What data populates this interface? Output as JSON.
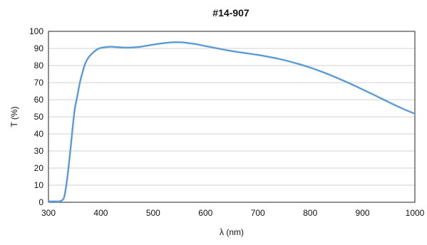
{
  "chart_data": {
    "type": "line",
    "title": "#14-907",
    "xlabel": "λ (nm)",
    "ylabel": "T (%)",
    "xlim": [
      300,
      1000
    ],
    "ylim": [
      0,
      100
    ],
    "xticks": [
      300,
      400,
      500,
      600,
      700,
      800,
      900,
      1000
    ],
    "yticks": [
      0,
      10,
      20,
      30,
      40,
      50,
      60,
      70,
      80,
      90,
      100
    ],
    "grid": true,
    "legend": "none",
    "series": [
      {
        "color": "#5b9bd5",
        "x": [
          300,
          310,
          320,
          325,
          330,
          335,
          340,
          345,
          350,
          355,
          360,
          365,
          370,
          375,
          380,
          385,
          390,
          395,
          400,
          410,
          420,
          430,
          440,
          450,
          460,
          470,
          480,
          490,
          500,
          510,
          520,
          530,
          540,
          550,
          560,
          570,
          580,
          590,
          600,
          620,
          640,
          660,
          680,
          700,
          720,
          740,
          760,
          780,
          800,
          820,
          840,
          860,
          880,
          900,
          920,
          940,
          960,
          980,
          1000
        ],
        "y": [
          0.5,
          0.5,
          0.5,
          1,
          3,
          12,
          25,
          40,
          54,
          62,
          70,
          76,
          81,
          84,
          86,
          87.5,
          88.8,
          89.8,
          90.3,
          90.8,
          91.0,
          90.8,
          90.6,
          90.5,
          90.6,
          90.8,
          91.2,
          91.7,
          92.2,
          92.7,
          93.1,
          93.4,
          93.6,
          93.6,
          93.4,
          93.0,
          92.6,
          92.0,
          91.4,
          90.2,
          89.0,
          88.0,
          87.1,
          86.2,
          85.1,
          83.9,
          82.4,
          80.7,
          78.8,
          76.6,
          74.2,
          71.6,
          68.9,
          66.0,
          63.1,
          60.1,
          57.1,
          54.3,
          51.8
        ]
      }
    ]
  }
}
